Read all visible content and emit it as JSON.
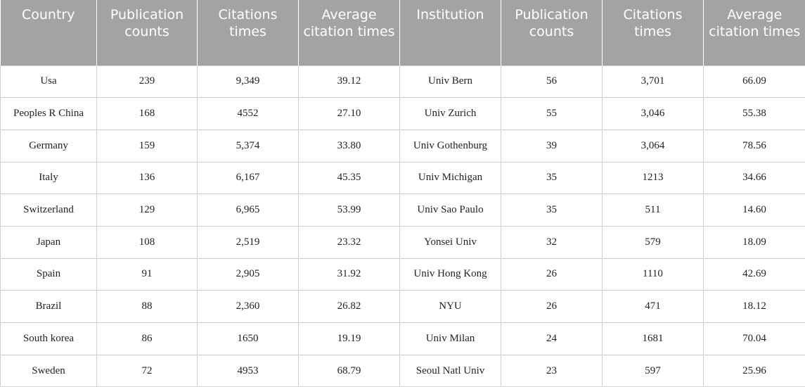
{
  "table": {
    "headers": [
      "Country",
      "Publication counts",
      "Citations times",
      "Average citation times",
      "Institution",
      "Publication counts",
      "Citations times",
      "Average citation times"
    ],
    "rows": [
      [
        "Usa",
        "239",
        "9,349",
        "39.12",
        "Univ Bern",
        "56",
        "3,701",
        "66.09"
      ],
      [
        "Peoples R China",
        "168",
        "4552",
        "27.10",
        "Univ Zurich",
        "55",
        "3,046",
        "55.38"
      ],
      [
        "Germany",
        "159",
        "5,374",
        "33.80",
        "Univ Gothenburg",
        "39",
        "3,064",
        "78.56"
      ],
      [
        "Italy",
        "136",
        "6,167",
        "45.35",
        "Univ Michigan",
        "35",
        "1213",
        "34.66"
      ],
      [
        "Switzerland",
        "129",
        "6,965",
        "53.99",
        "Univ Sao Paulo",
        "35",
        "511",
        "14.60"
      ],
      [
        "Japan",
        "108",
        "2,519",
        "23.32",
        "Yonsei Univ",
        "32",
        "579",
        "18.09"
      ],
      [
        "Spain",
        "91",
        "2,905",
        "31.92",
        "Univ Hong Kong",
        "26",
        "1110",
        "42.69"
      ],
      [
        "Brazil",
        "88",
        "2,360",
        "26.82",
        "NYU",
        "26",
        "471",
        "18.12"
      ],
      [
        "South korea",
        "86",
        "1650",
        "19.19",
        "Univ Milan",
        "24",
        "1681",
        "70.04"
      ],
      [
        "Sweden",
        "72",
        "4953",
        "68.79",
        "Seoul Natl Univ",
        "23",
        "597",
        "25.96"
      ]
    ]
  },
  "colors": {
    "header_background": "#a3a3a3",
    "header_text": "#ffffff",
    "cell_border": "#cfcfcf"
  }
}
